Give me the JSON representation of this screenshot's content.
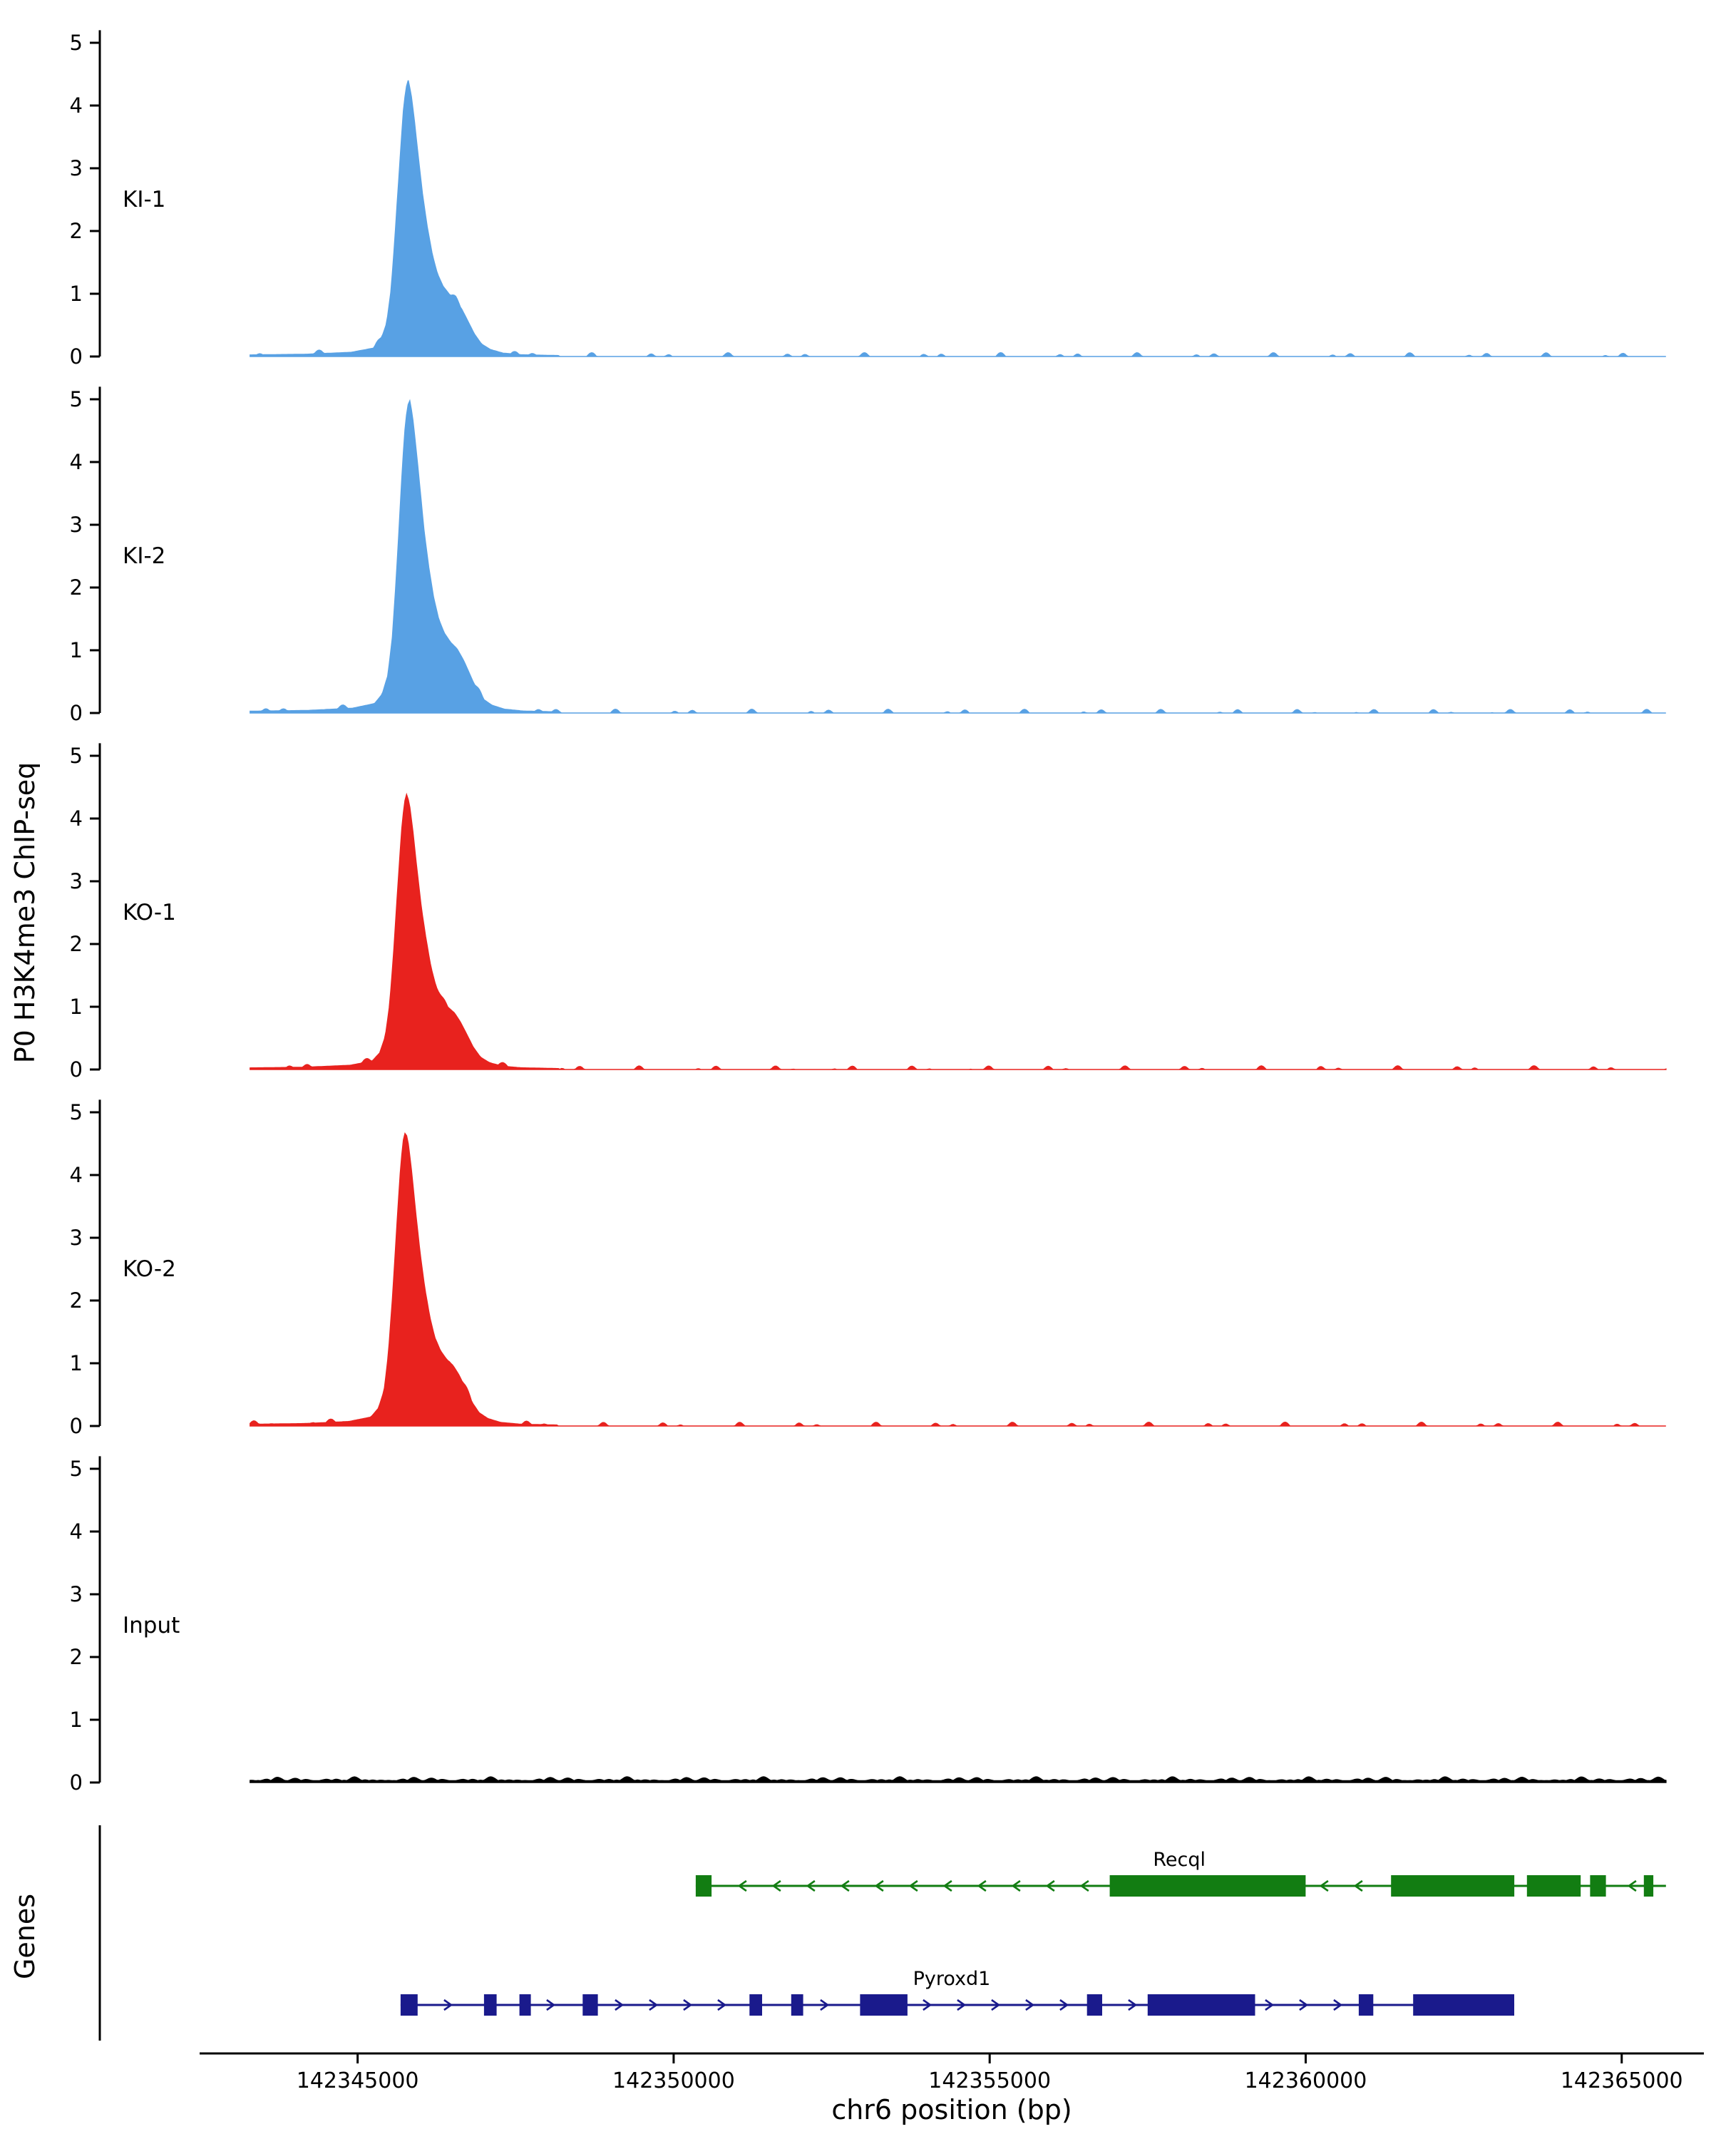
{
  "chart_data": {
    "type": "area",
    "title": "",
    "ylabel": "P0 H3K4me3 ChIP-seq",
    "xlabel": "chr6 position (bp)",
    "genes_label": "Genes",
    "chromosome": "chr6",
    "x_range": [
      142342500,
      142366300
    ],
    "data_range": [
      142343300,
      142365700
    ],
    "x_ticks": [
      142345000,
      142350000,
      142355000,
      142360000,
      142365000
    ],
    "y_ticks": [
      0,
      1,
      2,
      3,
      4,
      5
    ],
    "y_max": 5,
    "grid": false,
    "legend": "none",
    "tracks": [
      {
        "name": "KI-1",
        "color": "#58A1E4",
        "peak_summit": 142345800,
        "peak_height": 4.4,
        "noise": 0.06
      },
      {
        "name": "KI-2",
        "color": "#58A1E4",
        "peak_summit": 142345820,
        "peak_height": 5.0,
        "noise": 0.06
      },
      {
        "name": "KO-1",
        "color": "#E8221E",
        "peak_summit": 142345780,
        "peak_height": 4.4,
        "noise": 0.06
      },
      {
        "name": "KO-2",
        "color": "#E8221E",
        "peak_summit": 142345760,
        "peak_height": 4.7,
        "noise": 0.06
      },
      {
        "name": "Input",
        "color": "#000000",
        "peak_summit": null,
        "peak_height": 0.0,
        "noise": 0.09
      }
    ],
    "peak_profile": [
      [
        -3000,
        0.004
      ],
      [
        -1600,
        0.008
      ],
      [
        -900,
        0.015
      ],
      [
        -550,
        0.03
      ],
      [
        -430,
        0.06
      ],
      [
        -340,
        0.12
      ],
      [
        -270,
        0.24
      ],
      [
        -210,
        0.42
      ],
      [
        -160,
        0.6
      ],
      [
        -115,
        0.76
      ],
      [
        -75,
        0.89
      ],
      [
        -35,
        0.97
      ],
      [
        0,
        1.0
      ],
      [
        45,
        0.95
      ],
      [
        95,
        0.86
      ],
      [
        155,
        0.73
      ],
      [
        225,
        0.59
      ],
      [
        300,
        0.47
      ],
      [
        380,
        0.37
      ],
      [
        460,
        0.3
      ],
      [
        550,
        0.255
      ],
      [
        650,
        0.225
      ],
      [
        750,
        0.205
      ],
      [
        850,
        0.17
      ],
      [
        950,
        0.125
      ],
      [
        1050,
        0.08
      ],
      [
        1160,
        0.045
      ],
      [
        1300,
        0.025
      ],
      [
        1500,
        0.012
      ],
      [
        1800,
        0.006
      ],
      [
        2400,
        0.003
      ]
    ],
    "genes": [
      {
        "name": "Recql",
        "color": "#127D12",
        "strand": "-",
        "start": 142350350,
        "end": 142365700,
        "label_bp": 142358000,
        "exons": [
          [
            142350350,
            142350600
          ],
          [
            142356900,
            142360000
          ],
          [
            142361350,
            142363300
          ],
          [
            142363500,
            142364350
          ],
          [
            142364500,
            142364750
          ],
          [
            142365350,
            142365500
          ]
        ]
      },
      {
        "name": "Pyroxd1",
        "color": "#1A1A8C",
        "strand": "+",
        "start": 142345680,
        "end": 142363300,
        "label_bp": 142354400,
        "exons": [
          [
            142345680,
            142345950
          ],
          [
            142347000,
            142347200
          ],
          [
            142347560,
            142347740
          ],
          [
            142348560,
            142348800
          ],
          [
            142351200,
            142351400
          ],
          [
            142351860,
            142352050
          ],
          [
            142352950,
            142353700
          ],
          [
            142356540,
            142356780
          ],
          [
            142357500,
            142359200
          ],
          [
            142360840,
            142361070
          ],
          [
            142361700,
            142363300
          ]
        ]
      }
    ]
  }
}
